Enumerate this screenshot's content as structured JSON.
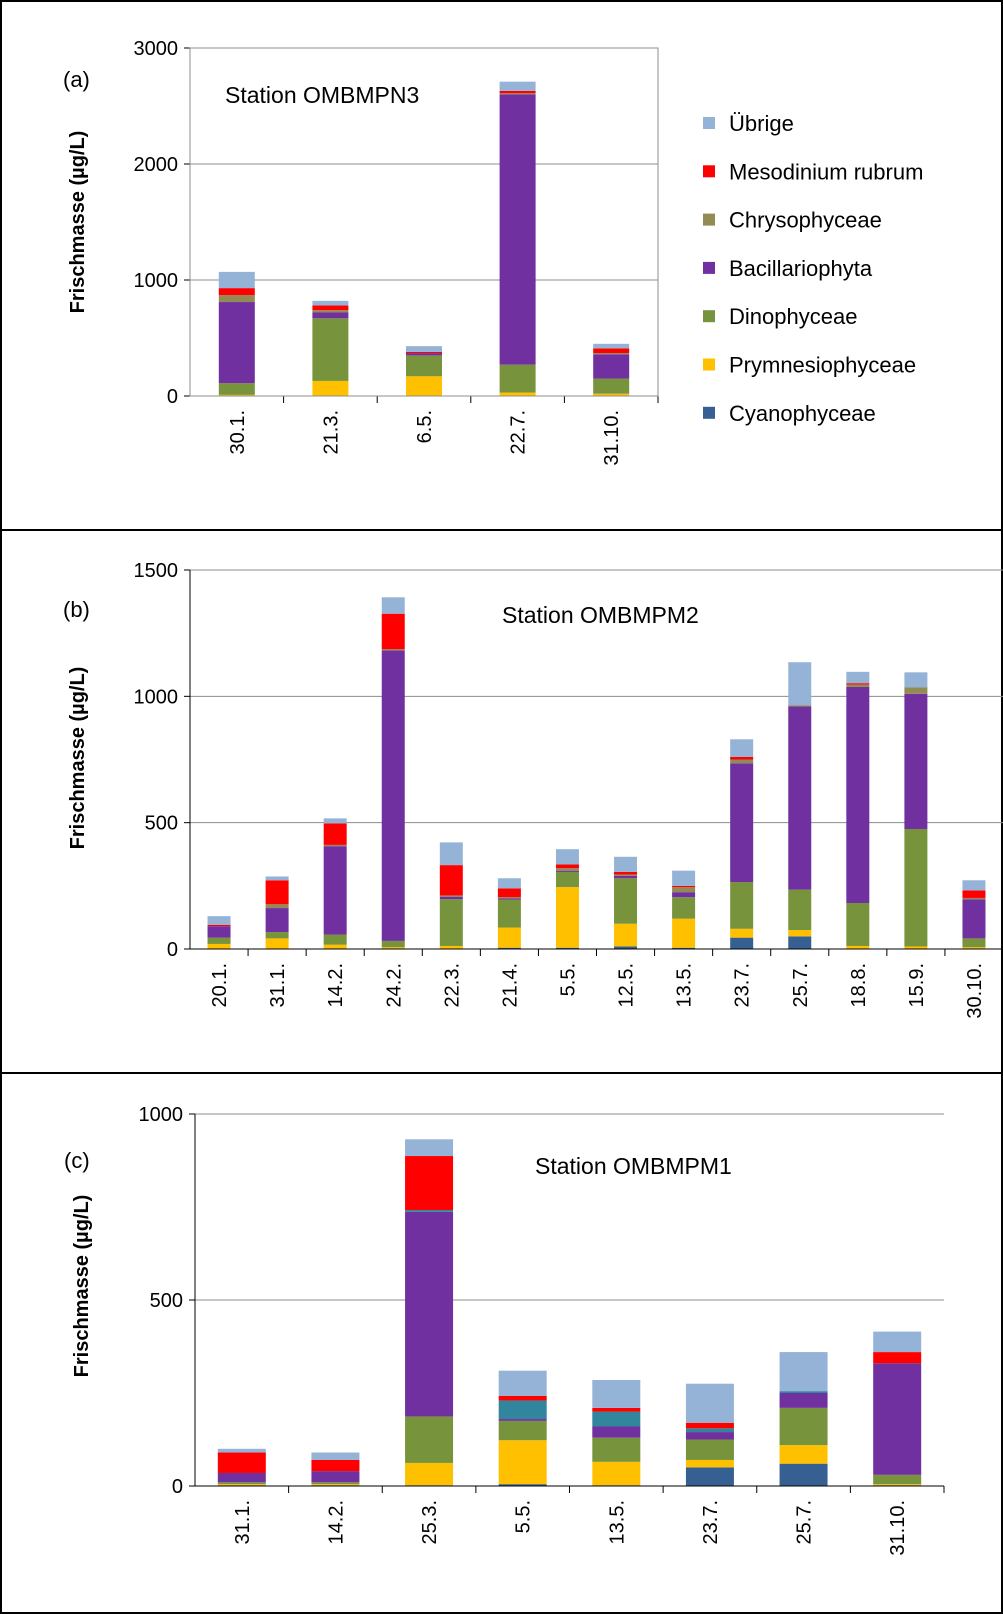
{
  "legend": [
    {
      "name": "Übrige",
      "color": "#95b3d7"
    },
    {
      "name": "Mesodinium rubrum",
      "color": "#ff0000"
    },
    {
      "name": "Chrysophyceae",
      "color": "#948a54"
    },
    {
      "name": "Bacillariophyta",
      "color": "#7030a0"
    },
    {
      "name": "Dinophyceae",
      "color": "#77933c"
    },
    {
      "name": "Prymnesiophyceae",
      "color": "#ffc000"
    },
    {
      "name": "Cyanophyceae",
      "color": "#366092"
    }
  ],
  "extra_colors": {
    "teal_component": "#31859c"
  },
  "chart_data": [
    {
      "type": "bar",
      "stacked": true,
      "panel_label": "(a)",
      "title": "Station OMBMPN3",
      "ylabel": "Frischmasse (µg/L)",
      "xlabel": "",
      "ylim": [
        0,
        3000
      ],
      "yticks": [
        0,
        1000,
        2000,
        3000
      ],
      "grid": true,
      "categories": [
        "30.1.",
        "21.3.",
        "6.5.",
        "22.7.",
        "31.10."
      ],
      "series": [
        {
          "name": "Cyanophyceae",
          "color": "#366092",
          "values": [
            0,
            0,
            0,
            0,
            0
          ]
        },
        {
          "name": "Prymnesiophyceae",
          "color": "#ffc000",
          "values": [
            10,
            130,
            170,
            30,
            20
          ]
        },
        {
          "name": "Dinophyceae",
          "color": "#77933c",
          "values": [
            100,
            540,
            180,
            240,
            130
          ]
        },
        {
          "name": "Bacillariophyta",
          "color": "#7030a0",
          "values": [
            700,
            50,
            20,
            2330,
            210
          ]
        },
        {
          "name": "Chrysophyceae",
          "color": "#948a54",
          "values": [
            60,
            20,
            0,
            10,
            10
          ]
        },
        {
          "name": "Mesodinium rubrum",
          "color": "#ff0000",
          "values": [
            60,
            40,
            10,
            20,
            40
          ]
        },
        {
          "name": "Übrige",
          "color": "#95b3d7",
          "values": [
            140,
            40,
            50,
            80,
            40
          ]
        }
      ]
    },
    {
      "type": "bar",
      "stacked": true,
      "panel_label": "(b)",
      "title": "Station OMBMPM2",
      "ylabel": "Frischmasse (µg/L)",
      "xlabel": "",
      "ylim": [
        0,
        1500
      ],
      "yticks": [
        0,
        500,
        1000,
        1500
      ],
      "grid": true,
      "categories": [
        "20.1.",
        "31.1.",
        "14.2.",
        "24.2.",
        "22.3.",
        "21.4.",
        "5.5.",
        "12.5.",
        "13.5.",
        "23.7.",
        "25.7.",
        "18.8.",
        "15.9.",
        "30.10."
      ],
      "series": [
        {
          "name": "Cyanophyceae",
          "color": "#366092",
          "values": [
            2,
            2,
            2,
            2,
            2,
            5,
            5,
            10,
            5,
            45,
            50,
            2,
            2,
            2
          ]
        },
        {
          "name": "Prymnesiophyceae",
          "color": "#ffc000",
          "values": [
            18,
            40,
            15,
            5,
            10,
            80,
            240,
            90,
            115,
            35,
            25,
            10,
            8,
            5
          ]
        },
        {
          "name": "Dinophyceae",
          "color": "#77933c",
          "values": [
            25,
            25,
            40,
            25,
            185,
            110,
            60,
            180,
            85,
            185,
            160,
            170,
            465,
            35
          ]
        },
        {
          "name": "Bacillariophyta",
          "color": "#7030a0",
          "values": [
            45,
            95,
            350,
            1150,
            10,
            5,
            5,
            10,
            20,
            470,
            725,
            855,
            535,
            155
          ]
        },
        {
          "name": "Chrysophyceae",
          "color": "#948a54",
          "values": [
            0,
            15,
            5,
            5,
            5,
            5,
            10,
            5,
            20,
            15,
            5,
            10,
            25,
            5
          ]
        },
        {
          "name": "Mesodinium rubrum",
          "color": "#ff0000",
          "values": [
            5,
            95,
            85,
            140,
            120,
            35,
            15,
            10,
            5,
            10,
            0,
            5,
            0,
            30
          ]
        },
        {
          "name": "Übrige",
          "color": "#95b3d7",
          "values": [
            35,
            15,
            20,
            65,
            90,
            40,
            60,
            60,
            60,
            70,
            170,
            45,
            60,
            40
          ]
        }
      ]
    },
    {
      "type": "bar",
      "stacked": true,
      "panel_label": "(c)",
      "title": "Station OMBMPM1",
      "ylabel": "Frischmasse (µg/L)",
      "xlabel": "",
      "ylim": [
        0,
        1000
      ],
      "yticks": [
        0,
        500,
        1000
      ],
      "grid": true,
      "categories": [
        "31.1.",
        "14.2.",
        "25.3.",
        "5.5.",
        "13.5.",
        "23.7.",
        "25.7.",
        "31.10."
      ],
      "series": [
        {
          "name": "Cyanophyceae",
          "color": "#366092",
          "values": [
            2,
            2,
            2,
            5,
            2,
            50,
            60,
            2
          ]
        },
        {
          "name": "Prymnesiophyceae",
          "color": "#ffc000",
          "values": [
            3,
            3,
            60,
            118,
            63,
            20,
            50,
            3
          ]
        },
        {
          "name": "Dinophyceae",
          "color": "#77933c",
          "values": [
            5,
            5,
            125,
            52,
            65,
            55,
            100,
            25
          ]
        },
        {
          "name": "Bacillariophyta",
          "color": "#7030a0",
          "values": [
            25,
            30,
            550,
            5,
            30,
            20,
            40,
            300
          ]
        },
        {
          "name": "",
          "color": "#31859c",
          "values": [
            0,
            0,
            5,
            50,
            40,
            10,
            5,
            0
          ]
        },
        {
          "name": "Mesodinium rubrum",
          "color": "#ff0000",
          "values": [
            55,
            30,
            145,
            12,
            10,
            15,
            0,
            30
          ]
        },
        {
          "name": "Übrige",
          "color": "#95b3d7",
          "values": [
            10,
            20,
            45,
            68,
            75,
            105,
            105,
            55
          ]
        }
      ]
    }
  ]
}
